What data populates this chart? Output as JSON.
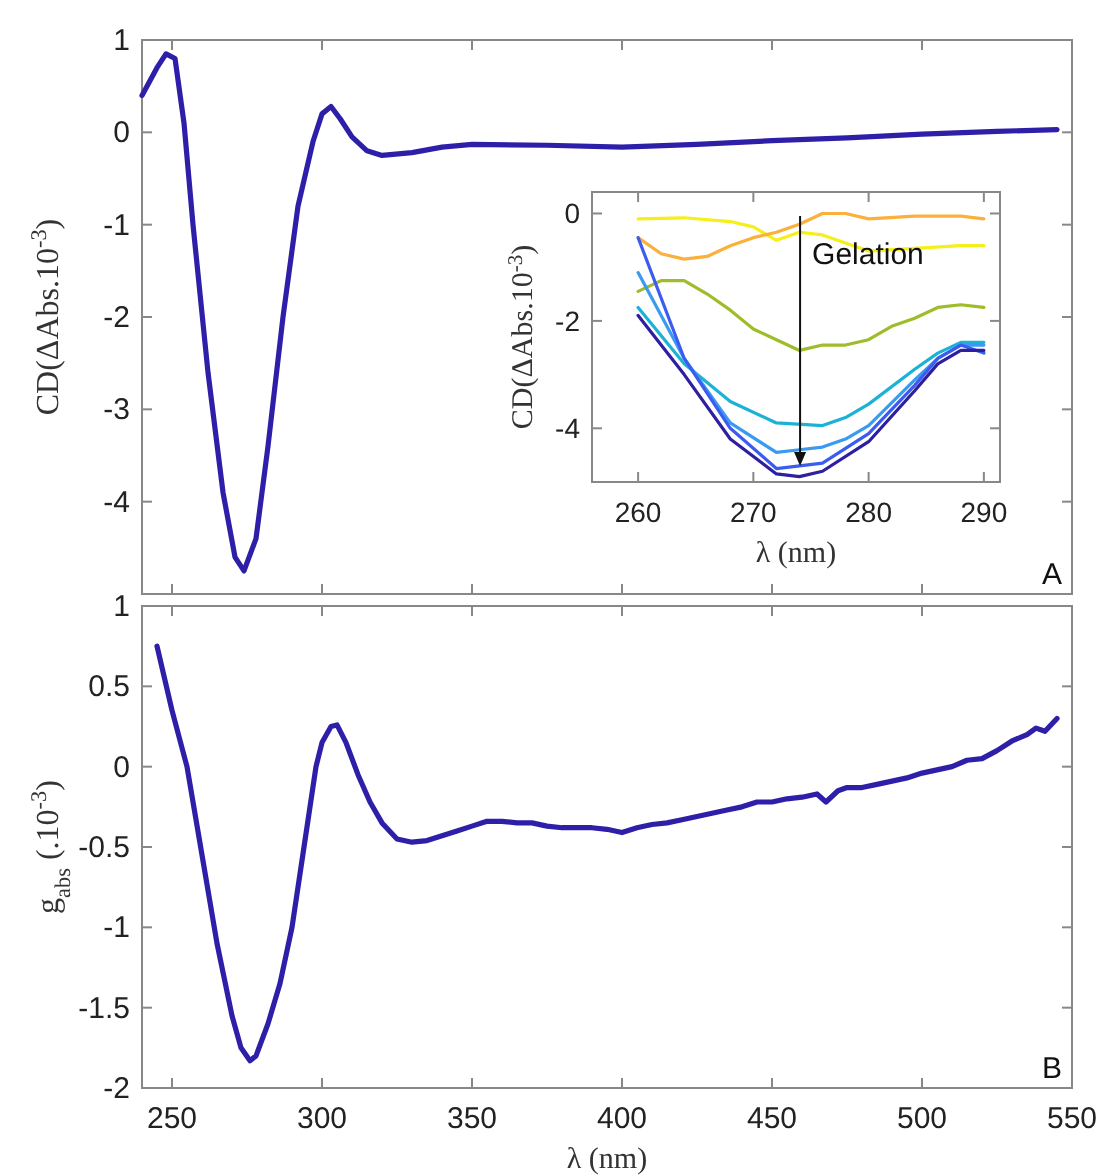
{
  "chart_data": [
    {
      "type": "line",
      "ylabel": "CD(ΔAbs.10$^{-3}$)",
      "xlim": [
        240,
        550
      ],
      "xticks": [
        250,
        300,
        350,
        400,
        450,
        500,
        550
      ],
      "ylim": [
        -5,
        1
      ],
      "yticks": [
        -4,
        -3,
        -2,
        -1,
        0,
        1
      ],
      "tick_labels": "y",
      "grid": false,
      "annotations": [
        "A"
      ],
      "series": [
        {
          "color": "#2e1fa8",
          "x": [
            240,
            245,
            248,
            251,
            254,
            257,
            262,
            267,
            271,
            274,
            278,
            282,
            287,
            292,
            297,
            300,
            303,
            306,
            310,
            315,
            320,
            330,
            340,
            350,
            375,
            400,
            425,
            450,
            475,
            500,
            525,
            545
          ],
          "values": [
            0.4,
            0.7,
            0.85,
            0.8,
            0.1,
            -1.0,
            -2.6,
            -3.9,
            -4.6,
            -4.75,
            -4.4,
            -3.4,
            -2.0,
            -0.8,
            -0.1,
            0.2,
            0.28,
            0.15,
            -0.05,
            -0.2,
            -0.25,
            -0.22,
            -0.16,
            -0.13,
            -0.14,
            -0.16,
            -0.13,
            -0.09,
            -0.06,
            -0.02,
            0.01,
            0.03
          ]
        }
      ]
    },
    {
      "type": "line",
      "xlabel": "λ (nm)",
      "ylabel": "CD(ΔAbs.10$^{-3}$)",
      "xlim": [
        256,
        291.4
      ],
      "xticks": [
        260,
        270,
        280,
        290
      ],
      "ylim": [
        -5,
        0.4
      ],
      "yticks": [
        -4,
        -2,
        0
      ],
      "grid": false,
      "annotations": [
        "Gelation"
      ],
      "series": [
        {
          "color": "#f5ef1a",
          "x": [
            260,
            264,
            268,
            270,
            272,
            274,
            276,
            280,
            284,
            288,
            290
          ],
          "values": [
            -0.1,
            -0.08,
            -0.15,
            -0.25,
            -0.5,
            -0.35,
            -0.4,
            -0.7,
            -0.65,
            -0.6,
            -0.6
          ]
        },
        {
          "color": "#fbb03c",
          "x": [
            260,
            262,
            264,
            266,
            268,
            270,
            272,
            274,
            276,
            278,
            280,
            284,
            288,
            290
          ],
          "values": [
            -0.45,
            -0.75,
            -0.85,
            -0.8,
            -0.6,
            -0.45,
            -0.35,
            -0.2,
            0.0,
            0.0,
            -0.1,
            -0.05,
            -0.05,
            -0.1
          ]
        },
        {
          "color": "#9fbc2a",
          "x": [
            260,
            262,
            264,
            266,
            268,
            270,
            272,
            274,
            276,
            278,
            280,
            282,
            284,
            286,
            288,
            290
          ],
          "values": [
            -1.45,
            -1.25,
            -1.25,
            -1.5,
            -1.8,
            -2.15,
            -2.35,
            -2.55,
            -2.45,
            -2.45,
            -2.35,
            -2.1,
            -1.95,
            -1.75,
            -1.7,
            -1.75
          ]
        },
        {
          "color": "#1cb2d6",
          "x": [
            260,
            264,
            268,
            272,
            276,
            278,
            280,
            284,
            286,
            288,
            290
          ],
          "values": [
            -1.75,
            -2.8,
            -3.5,
            -3.9,
            -3.95,
            -3.8,
            -3.55,
            -2.9,
            -2.6,
            -2.4,
            -2.4
          ]
        },
        {
          "color": "#3a9af0",
          "x": [
            260,
            264,
            268,
            272,
            274,
            276,
            278,
            280,
            284,
            286,
            288,
            290
          ],
          "values": [
            -1.1,
            -2.7,
            -3.9,
            -4.45,
            -4.4,
            -4.35,
            -4.2,
            -3.95,
            -3.1,
            -2.7,
            -2.45,
            -2.45
          ]
        },
        {
          "color": "#3c5cf0",
          "x": [
            260,
            264,
            268,
            272,
            274,
            276,
            280,
            284,
            286,
            288,
            290
          ],
          "values": [
            -0.45,
            -2.7,
            -4.0,
            -4.75,
            -4.7,
            -4.65,
            -4.1,
            -3.2,
            -2.7,
            -2.45,
            -2.6
          ]
        },
        {
          "color": "#2e1fa0",
          "x": [
            260,
            264,
            268,
            272,
            274,
            276,
            280,
            284,
            286,
            288,
            290
          ],
          "values": [
            -1.9,
            -3.0,
            -4.2,
            -4.85,
            -4.9,
            -4.8,
            -4.25,
            -3.3,
            -2.8,
            -2.55,
            -2.55
          ]
        }
      ]
    },
    {
      "type": "line",
      "xlabel": "λ (nm)",
      "ylabel": "g$_{abs}$ (.10$^{-3}$)",
      "xlim": [
        240,
        550
      ],
      "xticks": [
        250,
        300,
        350,
        400,
        450,
        500,
        550
      ],
      "ylim": [
        -2,
        1
      ],
      "yticks": [
        -2,
        -1.5,
        -1,
        -0.5,
        0,
        0.5,
        1
      ],
      "grid": false,
      "annotations": [
        "B"
      ],
      "series": [
        {
          "color": "#2e1fa8",
          "x": [
            245,
            250,
            255,
            260,
            265,
            270,
            273,
            276,
            278,
            282,
            286,
            290,
            294,
            298,
            300,
            303,
            305,
            308,
            312,
            316,
            320,
            325,
            330,
            335,
            340,
            345,
            350,
            355,
            360,
            365,
            370,
            375,
            380,
            385,
            390,
            395,
            400,
            405,
            410,
            415,
            420,
            425,
            430,
            435,
            440,
            445,
            450,
            455,
            460,
            465,
            468,
            472,
            475,
            480,
            485,
            490,
            495,
            500,
            505,
            510,
            515,
            520,
            525,
            530,
            535,
            538,
            541,
            545
          ],
          "values": [
            0.75,
            0.35,
            0.0,
            -0.55,
            -1.1,
            -1.55,
            -1.75,
            -1.83,
            -1.8,
            -1.6,
            -1.35,
            -1.0,
            -0.5,
            0.0,
            0.15,
            0.25,
            0.26,
            0.15,
            -0.05,
            -0.22,
            -0.35,
            -0.45,
            -0.47,
            -0.46,
            -0.43,
            -0.4,
            -0.37,
            -0.34,
            -0.34,
            -0.35,
            -0.35,
            -0.37,
            -0.38,
            -0.38,
            -0.38,
            -0.39,
            -0.41,
            -0.38,
            -0.36,
            -0.35,
            -0.33,
            -0.31,
            -0.29,
            -0.27,
            -0.25,
            -0.22,
            -0.22,
            -0.2,
            -0.19,
            -0.17,
            -0.22,
            -0.15,
            -0.13,
            -0.13,
            -0.11,
            -0.09,
            -0.07,
            -0.04,
            -0.02,
            0.0,
            0.04,
            0.05,
            0.1,
            0.16,
            0.2,
            0.24,
            0.22,
            0.3
          ]
        }
      ]
    }
  ]
}
